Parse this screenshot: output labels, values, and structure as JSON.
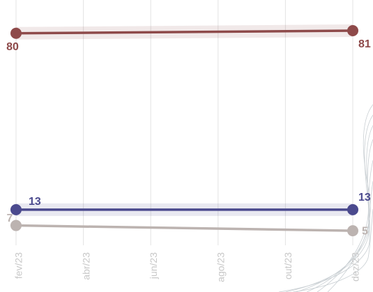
{
  "chart_data": {
    "type": "slope",
    "categories": [
      "fev/23",
      "abr/23",
      "jun/23",
      "ago/23",
      "out/23",
      "dez/23"
    ],
    "ylim": [
      0,
      90
    ],
    "series": [
      {
        "color": "#8e4a4a",
        "x": [
          "fev/23",
          "dez/23"
        ],
        "values": [
          80,
          81
        ]
      },
      {
        "color": "#4b4a8e",
        "x": [
          "fev/23",
          "dez/23"
        ],
        "values": [
          13,
          13
        ]
      },
      {
        "color": "#bcb3b0",
        "x": [
          "fev/23",
          "dez/23"
        ],
        "values": [
          7,
          5
        ]
      }
    ]
  }
}
